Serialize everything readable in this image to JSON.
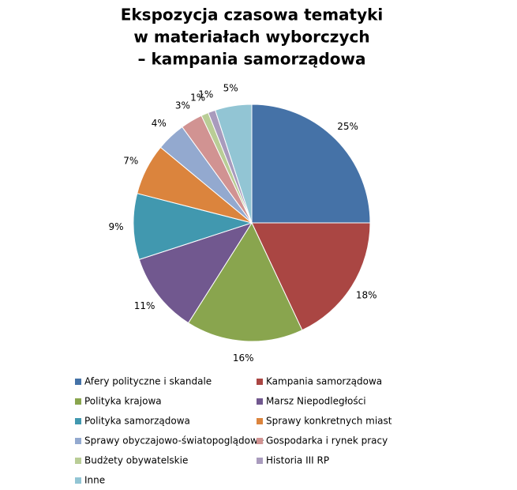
{
  "chart_data": {
    "type": "pie",
    "title": [
      "Ekspozycja czasowa tematyki",
      "w materiałach wyborczych",
      "– kampania samorządowa"
    ],
    "categories": [
      "Afery polityczne i skandale",
      "Kampania samorządowa",
      "Polityka krajowa",
      "Marsz Niepodległości",
      "Polityka samorządowa",
      "Sprawy konkretnych miast",
      "Sprawy obyczajowo-światopoglądowe",
      "Gospodarka i rynek pracy",
      "Budżety obywatelskie",
      "Historia III RP",
      "Inne"
    ],
    "values": [
      25,
      18,
      16,
      11,
      9,
      7,
      4,
      3,
      1,
      1,
      5
    ],
    "value_labels": [
      "25%",
      "18%",
      "16%",
      "11%",
      "9%",
      "7%",
      "4%",
      "3%",
      "1%",
      "1%",
      "5%"
    ],
    "colors": [
      "#4572A7",
      "#AA4643",
      "#89A54E",
      "#71588F",
      "#4198AF",
      "#DB843D",
      "#93A9CF",
      "#D19392",
      "#B9CD96",
      "#A99BBD",
      "#92C5D4"
    ],
    "legend": "bottom"
  }
}
